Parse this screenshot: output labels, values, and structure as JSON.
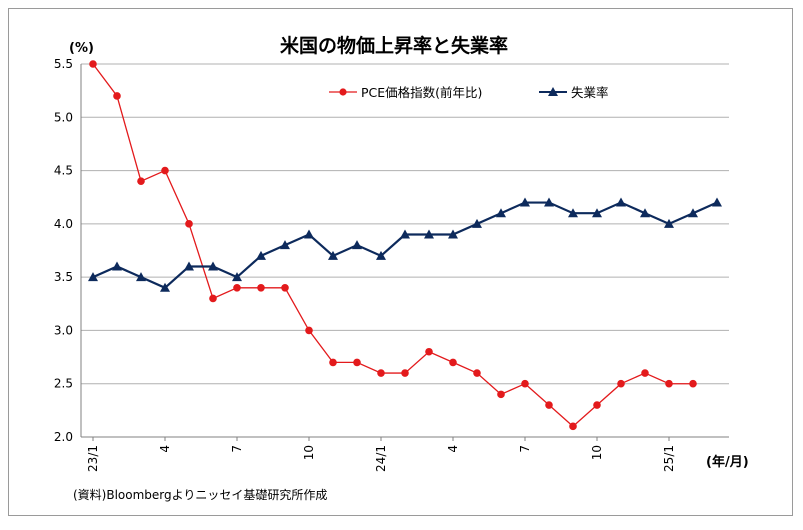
{
  "chart_data": {
    "type": "line",
    "title": "米国の物価上昇率と失業率",
    "ylabel": "(%)",
    "xlabel": "(年/月)",
    "ylim": [
      2.0,
      5.5
    ],
    "yticks": [
      "2.0",
      "2.5",
      "3.0",
      "3.5",
      "4.0",
      "4.5",
      "5.0",
      "5.5"
    ],
    "ytick_values": [
      2.0,
      2.5,
      3.0,
      3.5,
      4.0,
      4.5,
      5.0,
      5.5
    ],
    "x": [
      "23/1",
      "23/2",
      "23/3",
      "23/4",
      "23/5",
      "23/6",
      "23/7",
      "23/8",
      "23/9",
      "23/10",
      "23/11",
      "23/12",
      "24/1",
      "24/2",
      "24/3",
      "24/4",
      "24/5",
      "24/6",
      "24/7",
      "24/8",
      "24/9",
      "24/10",
      "24/11",
      "24/12",
      "25/1",
      "25/2",
      "25/3"
    ],
    "xtick_labels": [
      {
        "index": 0,
        "label": "23/1"
      },
      {
        "index": 3,
        "label": "4"
      },
      {
        "index": 6,
        "label": "7"
      },
      {
        "index": 9,
        "label": "10"
      },
      {
        "index": 12,
        "label": "24/1"
      },
      {
        "index": 15,
        "label": "4"
      },
      {
        "index": 18,
        "label": "7"
      },
      {
        "index": 21,
        "label": "10"
      },
      {
        "index": 24,
        "label": "25/1"
      }
    ],
    "grid": true,
    "legend_position": "top-right",
    "series": [
      {
        "name": "PCE価格指数(前年比)",
        "color": "#e31a1c",
        "marker": "circle",
        "values": [
          5.5,
          5.2,
          4.4,
          4.5,
          4.0,
          3.3,
          3.4,
          3.4,
          3.4,
          3.0,
          2.7,
          2.7,
          2.6,
          2.6,
          2.8,
          2.7,
          2.6,
          2.4,
          2.5,
          2.3,
          2.1,
          2.3,
          2.5,
          2.6,
          2.5,
          2.5,
          null
        ]
      },
      {
        "name": "失業率",
        "color": "#0d2a5c",
        "marker": "triangle",
        "values": [
          3.5,
          3.6,
          3.5,
          3.4,
          3.6,
          3.6,
          3.5,
          3.7,
          3.8,
          3.9,
          3.7,
          3.8,
          3.7,
          3.9,
          3.9,
          3.9,
          4.0,
          4.1,
          4.2,
          4.2,
          4.1,
          4.1,
          4.2,
          4.1,
          4.0,
          4.1,
          4.2
        ]
      }
    ]
  },
  "source": "(資料)Bloombergよりニッセイ基礎研究所作成"
}
